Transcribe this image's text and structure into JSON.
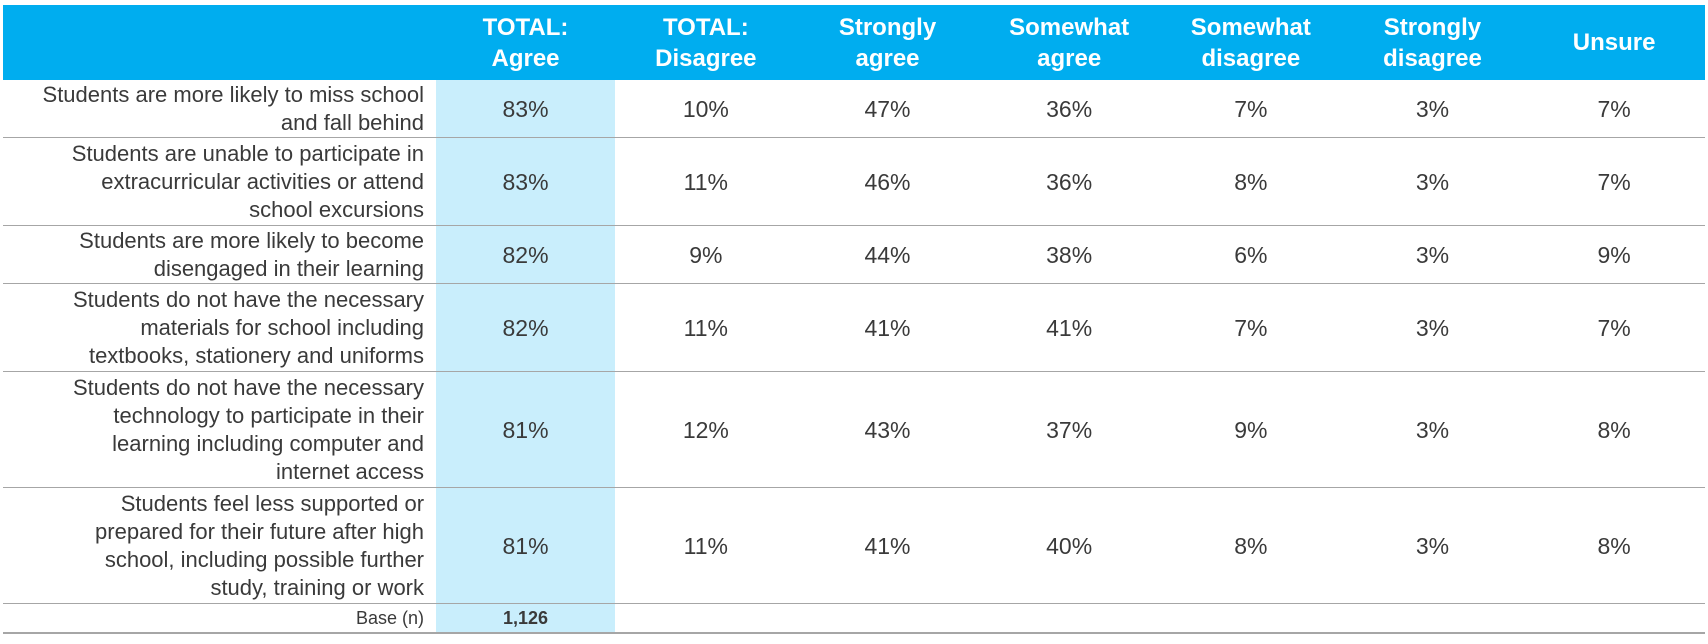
{
  "chart_data": {
    "type": "table",
    "columns": [
      "",
      "TOTAL: Agree",
      "TOTAL: Disagree",
      "Strongly agree",
      "Somewhat agree",
      "Somewhat disagree",
      "Strongly disagree",
      "Unsure"
    ],
    "column_lines": [
      [
        "",
        ""
      ],
      [
        "TOTAL:",
        "Agree"
      ],
      [
        "TOTAL:",
        "Disagree"
      ],
      [
        "Strongly",
        "agree"
      ],
      [
        "Somewhat",
        "agree"
      ],
      [
        "Somewhat",
        "disagree"
      ],
      [
        "Strongly",
        "disagree"
      ],
      [
        "Unsure",
        ""
      ]
    ],
    "rows": [
      {
        "label_lines": [
          "Students are more likely to miss school",
          "and fall behind"
        ],
        "values": [
          "83%",
          "10%",
          "47%",
          "36%",
          "7%",
          "3%",
          "7%"
        ]
      },
      {
        "label_lines": [
          "Students are unable to participate in",
          "extracurricular activities or attend",
          "school excursions"
        ],
        "values": [
          "83%",
          "11%",
          "46%",
          "36%",
          "8%",
          "3%",
          "7%"
        ]
      },
      {
        "label_lines": [
          "Students are more likely to become",
          "disengaged in their learning"
        ],
        "values": [
          "82%",
          "9%",
          "44%",
          "38%",
          "6%",
          "3%",
          "9%"
        ]
      },
      {
        "label_lines": [
          "Students do not have the necessary",
          "materials for school including",
          "textbooks, stationery and uniforms"
        ],
        "values": [
          "82%",
          "11%",
          "41%",
          "41%",
          "7%",
          "3%",
          "7%"
        ]
      },
      {
        "label_lines": [
          "Students do not have the necessary",
          "technology to participate in their",
          "learning including computer and",
          "internet access"
        ],
        "values": [
          "81%",
          "12%",
          "43%",
          "37%",
          "9%",
          "3%",
          "8%"
        ]
      },
      {
        "label_lines": [
          "Students feel less supported or",
          "prepared for their future after high",
          "school, including possible further",
          "study, training or work"
        ],
        "values": [
          "81%",
          "11%",
          "41%",
          "40%",
          "8%",
          "3%",
          "8%"
        ]
      }
    ],
    "base": {
      "label": "Base (n)",
      "value": "1,126"
    },
    "colors": {
      "header_bg": "#00ADEF",
      "header_text": "#FFFFFF",
      "highlight_column": "#C9EEFC",
      "text": "#3A3A3A",
      "rule": "#A6A6A6"
    }
  }
}
